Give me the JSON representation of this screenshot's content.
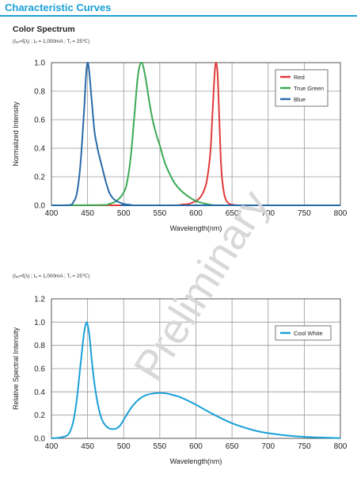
{
  "page_title": "Characteristic Curves",
  "section_title": "Color Spectrum",
  "watermark": "Preliminary",
  "charts": [
    {
      "condition_text": "(Iₑᵥ=f(λ) ; Iₑ = 1,000mA ; Tⱼ = 25℃)"
    },
    {
      "condition_text": "(Iₑᵥ=f(λ) ; Iₑ = 1,000mA ; Tⱼ = 25℃)"
    }
  ],
  "chart_data": [
    {
      "type": "line",
      "xlabel": "Wavelength(nm)",
      "ylabel": "Normalized Intensity",
      "xlim": [
        400,
        800
      ],
      "ylim": [
        0,
        1.0
      ],
      "xticks": [
        400,
        450,
        500,
        550,
        600,
        650,
        700,
        750,
        800
      ],
      "yticks": [
        0.0,
        0.2,
        0.4,
        0.6,
        0.8,
        1.0
      ],
      "grid": true,
      "legend_position": "top-right",
      "series": [
        {
          "name": "Red",
          "color": "#e03a3a",
          "x": [
            400,
            560,
            580,
            590,
            600,
            605,
            610,
            615,
            620,
            623,
            626,
            628,
            630,
            632,
            634,
            636,
            640,
            645,
            650,
            660,
            680,
            800
          ],
          "y": [
            0,
            0,
            0.005,
            0.01,
            0.03,
            0.05,
            0.09,
            0.17,
            0.37,
            0.65,
            0.93,
            1.0,
            0.92,
            0.66,
            0.38,
            0.2,
            0.06,
            0.015,
            0.005,
            0,
            0,
            0
          ]
        },
        {
          "name": "True Green",
          "color": "#3aaa55",
          "x": [
            400,
            470,
            480,
            490,
            500,
            505,
            510,
            515,
            520,
            525,
            530,
            535,
            540,
            545,
            550,
            555,
            560,
            570,
            580,
            590,
            600,
            610,
            620,
            640,
            800
          ],
          "y": [
            0,
            0.002,
            0.01,
            0.03,
            0.09,
            0.17,
            0.35,
            0.64,
            0.92,
            1.0,
            0.9,
            0.74,
            0.6,
            0.5,
            0.42,
            0.33,
            0.26,
            0.16,
            0.1,
            0.06,
            0.03,
            0.015,
            0.005,
            0,
            0
          ]
        },
        {
          "name": "Blue",
          "color": "#2a6aa8",
          "x": [
            400,
            425,
            430,
            435,
            440,
            445,
            448,
            450,
            452,
            455,
            458,
            460,
            463,
            465,
            470,
            475,
            480,
            485,
            490,
            500,
            510,
            520,
            800
          ],
          "y": [
            0,
            0.002,
            0.02,
            0.08,
            0.28,
            0.65,
            0.92,
            1.0,
            0.95,
            0.78,
            0.6,
            0.5,
            0.42,
            0.37,
            0.27,
            0.17,
            0.09,
            0.05,
            0.03,
            0.01,
            0.003,
            0,
            0
          ]
        }
      ]
    },
    {
      "type": "line",
      "xlabel": "Wavelength(nm)",
      "ylabel": "Relative Spectral Intensity",
      "xlim": [
        400,
        800
      ],
      "ylim": [
        0,
        1.2
      ],
      "xticks": [
        400,
        450,
        500,
        550,
        600,
        650,
        700,
        750,
        800
      ],
      "yticks": [
        0.0,
        0.2,
        0.4,
        0.6,
        0.8,
        1.0,
        1.2
      ],
      "grid": true,
      "legend_position": "top-right",
      "series": [
        {
          "name": "Cool White",
          "color": "#1aa0d8",
          "x": [
            400,
            410,
            420,
            425,
            430,
            435,
            440,
            445,
            448,
            450,
            453,
            456,
            460,
            465,
            470,
            475,
            480,
            485,
            490,
            495,
            500,
            510,
            520,
            530,
            540,
            550,
            560,
            570,
            580,
            600,
            620,
            650,
            680,
            700,
            730,
            760,
            800
          ],
          "y": [
            0,
            0.005,
            0.02,
            0.05,
            0.14,
            0.33,
            0.62,
            0.9,
            0.99,
            0.98,
            0.86,
            0.66,
            0.45,
            0.27,
            0.16,
            0.11,
            0.085,
            0.08,
            0.085,
            0.11,
            0.16,
            0.26,
            0.33,
            0.37,
            0.385,
            0.39,
            0.385,
            0.37,
            0.35,
            0.29,
            0.22,
            0.13,
            0.07,
            0.045,
            0.022,
            0.01,
            0.002
          ]
        }
      ]
    }
  ]
}
